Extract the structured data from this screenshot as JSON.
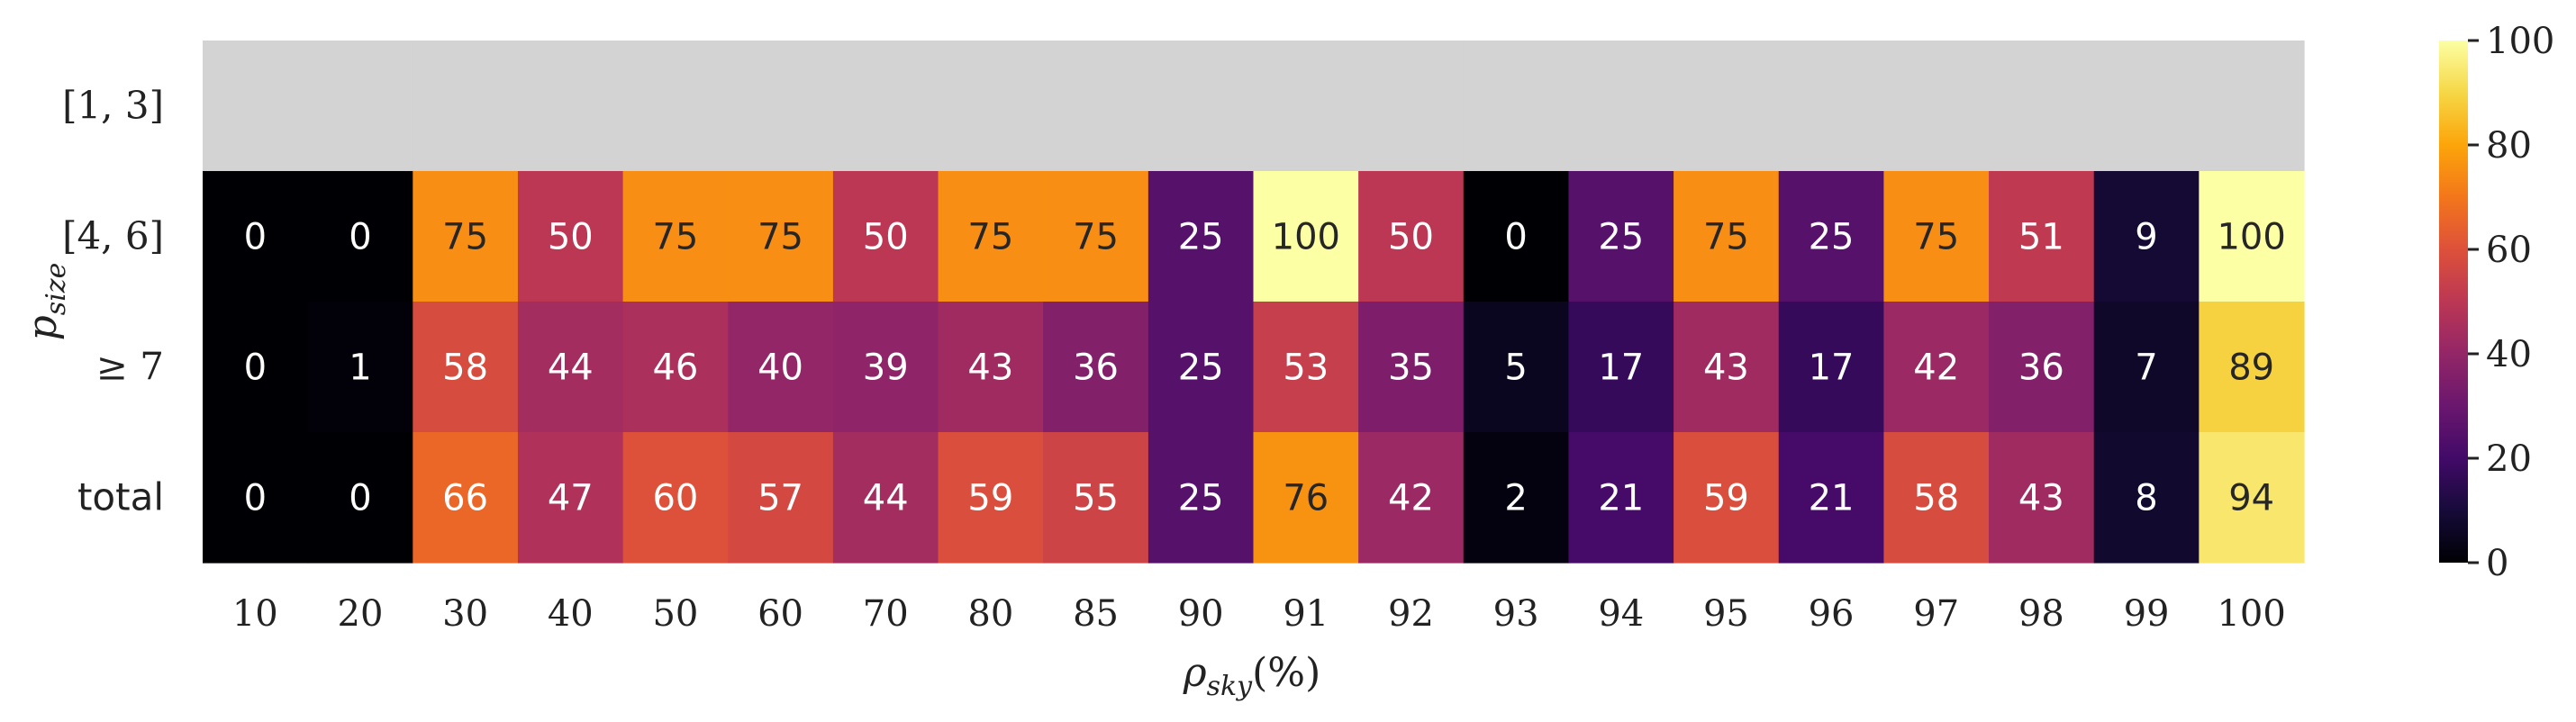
{
  "chart_data": {
    "type": "heatmap",
    "xlabel": "ρ_sky(%)",
    "ylabel": "p_size",
    "x_categories": [
      "10",
      "20",
      "30",
      "40",
      "50",
      "60",
      "70",
      "80",
      "85",
      "90",
      "91",
      "92",
      "93",
      "94",
      "95",
      "96",
      "97",
      "98",
      "99",
      "100"
    ],
    "y_categories": [
      "[1, 3]",
      "[4, 6]",
      "≥ 7",
      "total"
    ],
    "values": [
      [
        null,
        null,
        null,
        null,
        null,
        null,
        null,
        null,
        null,
        null,
        null,
        null,
        null,
        null,
        null,
        null,
        null,
        null,
        null,
        null
      ],
      [
        0,
        0,
        75,
        50,
        75,
        75,
        50,
        75,
        75,
        25,
        100,
        50,
        0,
        25,
        75,
        25,
        75,
        51,
        9,
        100
      ],
      [
        0,
        1,
        58,
        44,
        46,
        40,
        39,
        43,
        36,
        25,
        53,
        35,
        5,
        17,
        43,
        17,
        42,
        36,
        7,
        89
      ],
      [
        0,
        0,
        66,
        47,
        60,
        57,
        44,
        59,
        55,
        25,
        76,
        42,
        2,
        21,
        59,
        21,
        58,
        43,
        8,
        94
      ]
    ],
    "missing_color": "#d3d3d3",
    "colormap": "inferno",
    "colorbar": {
      "min": 0,
      "max": 100,
      "ticks": [
        0,
        20,
        40,
        60,
        80,
        100
      ]
    }
  }
}
